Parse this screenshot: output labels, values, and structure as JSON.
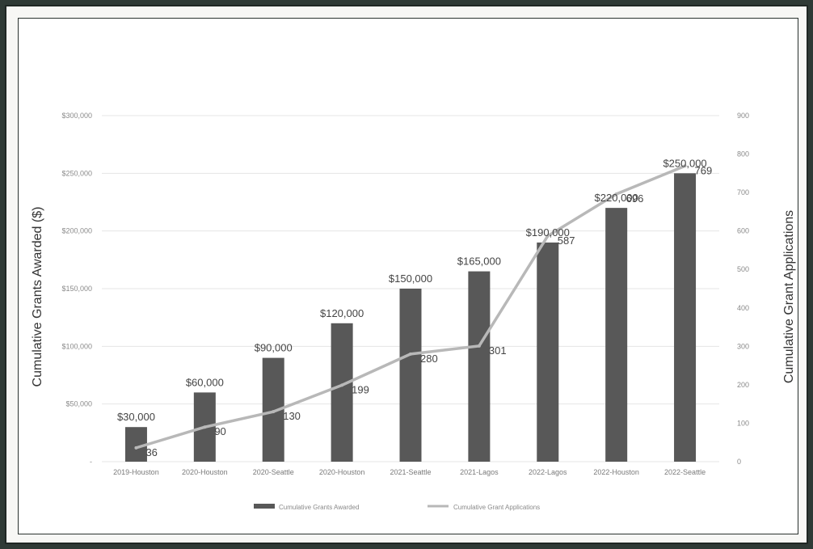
{
  "chart_data": {
    "type": "bar",
    "categories": [
      "2019-Houston",
      "2020-Houston",
      "2020-Seattle",
      "2020-Houston",
      "2021-Seattle",
      "2021-Lagos",
      "2022-Lagos",
      "2022-Houston",
      "2022-Seattle"
    ],
    "series": [
      {
        "name": "Cumulative Grants Awarded",
        "type": "bar",
        "axis": "left",
        "values": [
          30000,
          60000,
          90000,
          120000,
          150000,
          165000,
          190000,
          220000,
          250000
        ],
        "labels": [
          "$30,000",
          "$60,000",
          "$90,000",
          "$120,000",
          "$150,000",
          "$165,000",
          "$190,000",
          "$220,000",
          "$250,000"
        ]
      },
      {
        "name": "Cumulative Grant Applications",
        "type": "line",
        "axis": "right",
        "values": [
          36,
          90,
          130,
          199,
          280,
          301,
          587,
          696,
          769
        ],
        "labels": [
          "36",
          "90",
          "130",
          "199",
          "280",
          "301",
          "587",
          "696",
          "769"
        ]
      }
    ],
    "ylabel": "Cumulative Grants Awarded ($)",
    "y2label": "Cumulative Grant Applications",
    "ylim": [
      0,
      300000
    ],
    "y2lim": [
      0,
      900
    ],
    "yticks": [
      "-",
      "$50,000",
      "$100,000",
      "$150,000",
      "$200,000",
      "$250,000",
      "$300,000"
    ],
    "y2ticks": [
      "0",
      "100",
      "200",
      "300",
      "400",
      "500",
      "600",
      "700",
      "800",
      "900"
    ],
    "grid": true,
    "legend": "bottom",
    "colors": {
      "bar": "#585858",
      "line": "#b8b8b8",
      "grid": "#e4e4e4"
    }
  }
}
